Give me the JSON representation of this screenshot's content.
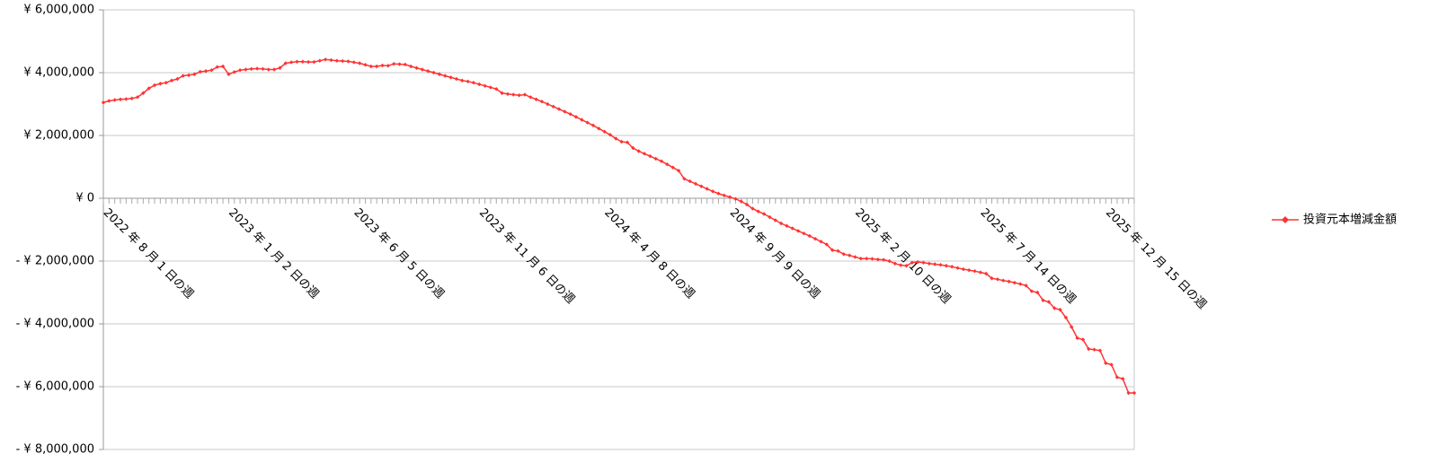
{
  "chart_data": {
    "type": "line",
    "categories": [
      "2022 年 8 月 1 日の週",
      null,
      null,
      null,
      null,
      null,
      null,
      null,
      null,
      null,
      null,
      null,
      null,
      null,
      null,
      null,
      null,
      null,
      null,
      null,
      null,
      null,
      "2023 年 1 月 2 日の週",
      null,
      null,
      null,
      null,
      null,
      null,
      null,
      null,
      null,
      null,
      null,
      null,
      null,
      null,
      null,
      null,
      null,
      null,
      null,
      null,
      null,
      "2023 年 6 月 5 日の週",
      null,
      null,
      null,
      null,
      null,
      null,
      null,
      null,
      null,
      null,
      null,
      null,
      null,
      null,
      null,
      null,
      null,
      null,
      null,
      null,
      null,
      "2023 年 11 月 6 日の週",
      null,
      null,
      null,
      null,
      null,
      null,
      null,
      null,
      null,
      null,
      null,
      null,
      null,
      null,
      null,
      null,
      null,
      null,
      null,
      null,
      null,
      "2024 年 4 月 8 日の週",
      null,
      null,
      null,
      null,
      null,
      null,
      null,
      null,
      null,
      null,
      null,
      null,
      null,
      null,
      null,
      null,
      null,
      null,
      null,
      null,
      null,
      "2024 年 9 月 9 日の週",
      null,
      null,
      null,
      null,
      null,
      null,
      null,
      null,
      null,
      null,
      null,
      null,
      null,
      null,
      null,
      null,
      null,
      null,
      null,
      null,
      null,
      "2025 年 2 月 10 日の週",
      null,
      null,
      null,
      null,
      null,
      null,
      null,
      null,
      null,
      null,
      null,
      null,
      null,
      null,
      null,
      null,
      null,
      null,
      null,
      null,
      null,
      "2025 年 7 月 14 日の週",
      null,
      null,
      null,
      null,
      null,
      null,
      null,
      null,
      null,
      null,
      null,
      null,
      null,
      null,
      null,
      null,
      null,
      null,
      null,
      null,
      null,
      "2025 年 12 月 15 日の週",
      null,
      null,
      null,
      null,
      null
    ],
    "series": [
      {
        "name": "投資元本増減金額",
        "color": "#ff3333",
        "values": [
          3050000,
          3100000,
          3130000,
          3150000,
          3160000,
          3180000,
          3220000,
          3350000,
          3500000,
          3600000,
          3650000,
          3680000,
          3750000,
          3800000,
          3900000,
          3920000,
          3950000,
          4030000,
          4050000,
          4080000,
          4180000,
          4200000,
          3950000,
          4020000,
          4080000,
          4100000,
          4120000,
          4130000,
          4120000,
          4100000,
          4100000,
          4150000,
          4300000,
          4330000,
          4350000,
          4350000,
          4340000,
          4340000,
          4380000,
          4420000,
          4400000,
          4380000,
          4370000,
          4360000,
          4330000,
          4300000,
          4250000,
          4200000,
          4200000,
          4230000,
          4220000,
          4280000,
          4270000,
          4260000,
          4200000,
          4150000,
          4100000,
          4050000,
          4000000,
          3950000,
          3900000,
          3850000,
          3800000,
          3750000,
          3720000,
          3680000,
          3630000,
          3580000,
          3530000,
          3480000,
          3350000,
          3320000,
          3300000,
          3280000,
          3300000,
          3220000,
          3150000,
          3080000,
          3000000,
          2920000,
          2840000,
          2760000,
          2680000,
          2590000,
          2500000,
          2410000,
          2320000,
          2220000,
          2120000,
          2020000,
          1900000,
          1800000,
          1780000,
          1600000,
          1500000,
          1420000,
          1340000,
          1260000,
          1180000,
          1080000,
          980000,
          880000,
          620000,
          540000,
          460000,
          380000,
          300000,
          220000,
          150000,
          90000,
          40000,
          -20000,
          -100000,
          -200000,
          -330000,
          -420000,
          -500000,
          -600000,
          -700000,
          -800000,
          -880000,
          -960000,
          -1040000,
          -1120000,
          -1200000,
          -1290000,
          -1380000,
          -1470000,
          -1650000,
          -1680000,
          -1780000,
          -1820000,
          -1870000,
          -1920000,
          -1920000,
          -1930000,
          -1950000,
          -1960000,
          -2000000,
          -2080000,
          -2130000,
          -2150000,
          -2050000,
          -2030000,
          -2050000,
          -2080000,
          -2100000,
          -2120000,
          -2150000,
          -2180000,
          -2220000,
          -2260000,
          -2290000,
          -2320000,
          -2360000,
          -2400000,
          -2550000,
          -2580000,
          -2620000,
          -2650000,
          -2690000,
          -2730000,
          -2780000,
          -2960000,
          -3000000,
          -3250000,
          -3300000,
          -3500000,
          -3550000,
          -3800000,
          -4100000,
          -4450000,
          -4500000,
          -4800000,
          -4820000,
          -4850000,
          -5250000,
          -5300000,
          -5700000,
          -5750000,
          -6200000,
          -6200000
        ]
      }
    ],
    "ylim": [
      -8000000,
      6000000
    ],
    "yticks": [
      {
        "value": -8000000,
        "label": "- ¥ 8,000,000"
      },
      {
        "value": -6000000,
        "label": "- ¥ 6,000,000"
      },
      {
        "value": -4000000,
        "label": "- ¥ 4,000,000"
      },
      {
        "value": -2000000,
        "label": "- ¥ 2,000,000"
      },
      {
        "value": 0,
        "label": "¥ 0"
      },
      {
        "value": 2000000,
        "label": "¥ 2,000,000"
      },
      {
        "value": 4000000,
        "label": "¥ 4,000,000"
      },
      {
        "value": 6000000,
        "label": "¥ 6,000,000"
      }
    ],
    "grid": true,
    "negative_label_color": "#ff0000",
    "legend": "right"
  }
}
